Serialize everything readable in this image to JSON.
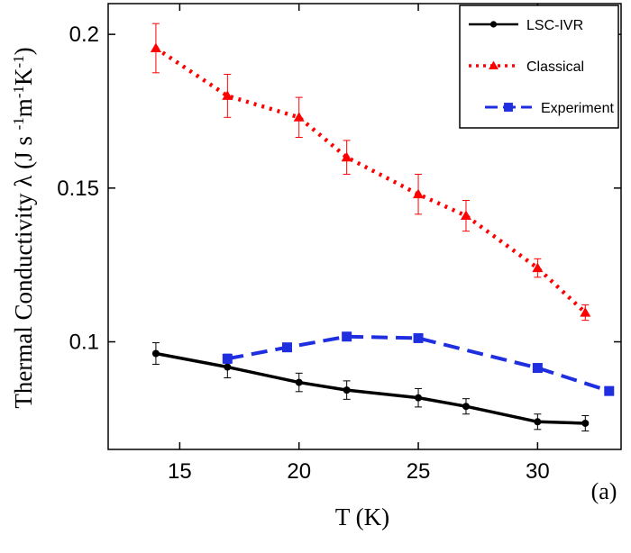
{
  "chart_data": {
    "type": "line",
    "xlabel": "T (K)",
    "ylabel_main": "Thermal Conductivity λ (J s",
    "ylabel_units": [
      {
        "text": "-1",
        "sup": true
      },
      {
        "text": "m",
        "sup": false
      },
      {
        "text": "-1",
        "sup": true
      },
      {
        "text": "K",
        "sup": false
      },
      {
        "text": "-1",
        "sup": true
      },
      {
        "text": ")",
        "sup": false
      }
    ],
    "panel_label": "(a)",
    "xlim": [
      12,
      33.5
    ],
    "ylim": [
      0.065,
      0.21
    ],
    "xticks": [
      15,
      20,
      25,
      30
    ],
    "yticks": [
      0.1,
      0.15,
      0.2
    ],
    "ytick_labels": [
      "0.1",
      "0.15",
      "0.2"
    ],
    "grid": false,
    "legend_position": "top-right",
    "series": [
      {
        "name": "LSC-IVR",
        "color": "#000000",
        "line_style": "solid",
        "marker": "circle",
        "x": [
          14,
          17,
          20,
          22,
          25,
          27,
          30,
          32
        ],
        "y": [
          0.0962,
          0.0918,
          0.0868,
          0.0843,
          0.0818,
          0.079,
          0.074,
          0.0735
        ],
        "err": [
          0.0035,
          0.0035,
          0.003,
          0.003,
          0.003,
          0.0025,
          0.0025,
          0.0025
        ]
      },
      {
        "name": "Classical",
        "color": "#ff0000",
        "line_style": "dotted",
        "marker": "triangle",
        "x": [
          14,
          17,
          20,
          22,
          25,
          27,
          30,
          32
        ],
        "y": [
          0.1955,
          0.18,
          0.173,
          0.16,
          0.148,
          0.141,
          0.124,
          0.1095
        ],
        "err": [
          0.008,
          0.007,
          0.0065,
          0.0055,
          0.0065,
          0.005,
          0.003,
          0.0025
        ]
      },
      {
        "name": "Experiment",
        "color": "#1f2fe0",
        "line_style": "dashed",
        "marker": "square",
        "x": [
          17,
          19.5,
          22,
          25,
          30,
          33
        ],
        "y": [
          0.0945,
          0.0982,
          0.1017,
          0.1012,
          0.0915,
          0.084
        ],
        "err": [
          0.0015,
          0,
          0,
          0,
          0,
          0
        ]
      }
    ]
  }
}
